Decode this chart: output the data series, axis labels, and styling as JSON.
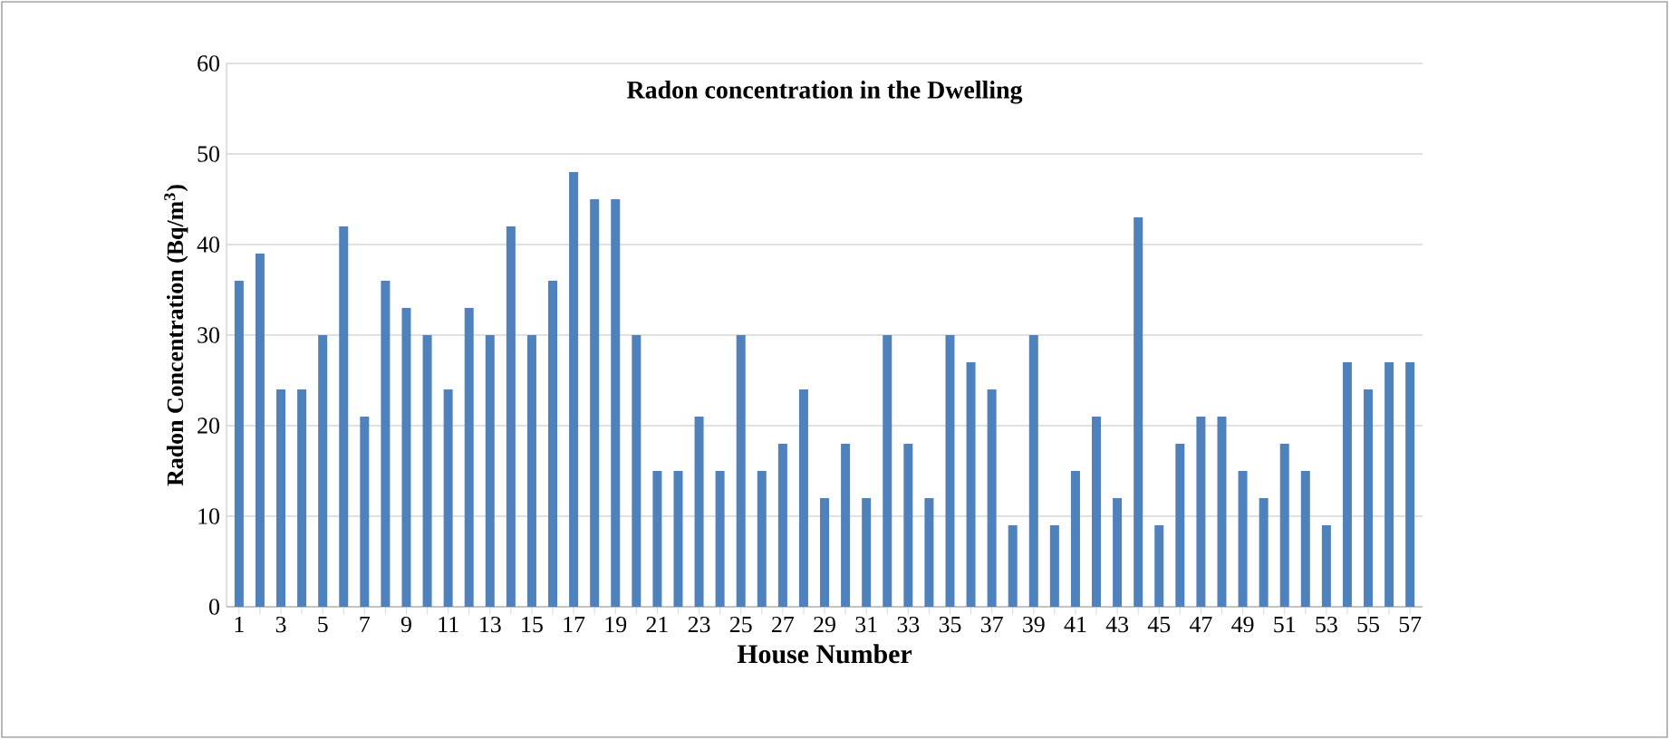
{
  "chart_data": {
    "type": "bar",
    "title": "Radon concentration in the Dwelling",
    "xlabel": "House Number",
    "ylabel": "Radon Concentration (Bq/m$^{3}$)",
    "categories": [
      "1",
      null,
      "3",
      null,
      "5",
      null,
      "7",
      null,
      "9",
      null,
      "11",
      null,
      "13",
      null,
      "15",
      null,
      "17",
      null,
      "19",
      null,
      "21",
      null,
      "23",
      null,
      "25",
      null,
      "27",
      null,
      "29",
      null,
      "31",
      null,
      "33",
      null,
      "35",
      null,
      "37",
      null,
      "39",
      null,
      "41",
      null,
      "43",
      null,
      "45",
      null,
      "47",
      null,
      "49",
      null,
      "51",
      null,
      "53",
      null,
      "55",
      null,
      "57"
    ],
    "values": [
      36,
      39,
      24,
      24,
      30,
      42,
      21,
      36,
      33,
      30,
      24,
      33,
      30,
      42,
      30,
      36,
      48,
      45,
      45,
      30,
      15,
      15,
      21,
      15,
      30,
      15,
      18,
      24,
      12,
      18,
      12,
      30,
      18,
      12,
      30,
      27,
      24,
      9,
      30,
      9,
      15,
      21,
      12,
      43,
      9,
      18,
      21,
      21,
      15,
      12,
      18,
      15,
      9,
      27,
      24,
      27,
      27
    ],
    "color": "#4f81bd",
    "ylim": [
      0,
      60
    ],
    "yticks": [
      0,
      10,
      20,
      30,
      40,
      50,
      60
    ],
    "grid": "y"
  }
}
